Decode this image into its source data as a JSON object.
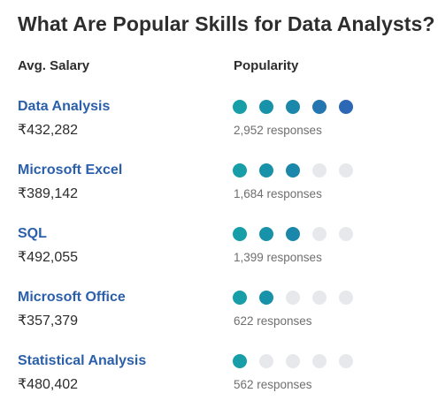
{
  "title": "What Are Popular Skills for Data Analysts?",
  "columns": {
    "salary": "Avg. Salary",
    "popularity": "Popularity"
  },
  "colors": {
    "skill_link": "#2b5faa",
    "dot_empty": "#e6e8ec",
    "dot_levels": [
      "#179ea8",
      "#1892a9",
      "#1b88ab",
      "#2476b0",
      "#2d68b5"
    ]
  },
  "skills": [
    {
      "name": "Data Analysis",
      "salary": "₹432,282",
      "popularity": 5,
      "responses": "2,952 responses"
    },
    {
      "name": "Microsoft Excel",
      "salary": "₹389,142",
      "popularity": 3,
      "responses": "1,684 responses"
    },
    {
      "name": "SQL",
      "salary": "₹492,055",
      "popularity": 3,
      "responses": "1,399 responses"
    },
    {
      "name": "Microsoft Office",
      "salary": "₹357,379",
      "popularity": 2,
      "responses": "622 responses"
    },
    {
      "name": "Statistical Analysis",
      "salary": "₹480,402",
      "popularity": 1,
      "responses": "562 responses"
    }
  ]
}
